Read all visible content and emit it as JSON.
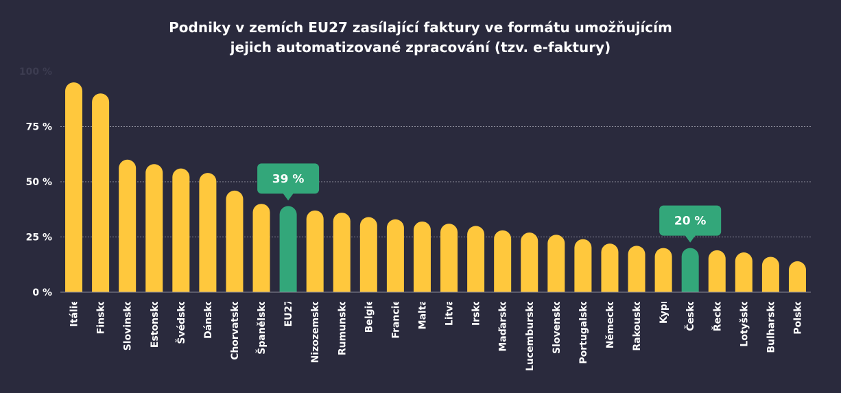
{
  "chart_data": {
    "type": "bar",
    "title_line1": "Podniky v zemích EU27 zasílající faktury ve formátu umožňujícím",
    "title_line2": "jejich automatizované zpracování (tzv. e-faktury)",
    "xlabel": "",
    "ylabel": "",
    "ylim": [
      0,
      100
    ],
    "yticks": [
      "0 %",
      "25 %",
      "50 %",
      "75 %",
      "100 %"
    ],
    "grid": true,
    "categories": [
      "Itálie",
      "Finsko",
      "Slovinsko",
      "Estonsko",
      "Švédsko",
      "Dánsko",
      "Chorvatsko",
      "Španělsko",
      "EU27",
      "Nizozemsko",
      "Rumunsko",
      "Belgie",
      "Francie",
      "Malta",
      "Litva",
      "Irsko",
      "Maďarsko",
      "Lucembursko",
      "Slovensko",
      "Portugalsko",
      "Německo",
      "Rakousko",
      "Kypr",
      "Česko",
      "Řecko",
      "Lotyšsko",
      "Bulharsko",
      "Polsko"
    ],
    "values": [
      95,
      90,
      60,
      58,
      56,
      54,
      46,
      40,
      39,
      37,
      36,
      34,
      33,
      32,
      31,
      30,
      28,
      27,
      26,
      24,
      22,
      21,
      20,
      20,
      19,
      18,
      16,
      14
    ],
    "highlighted": [
      "EU27",
      "Česko"
    ],
    "callouts": [
      {
        "category": "EU27",
        "label": "39 %"
      },
      {
        "category": "Česko",
        "label": "20 %"
      }
    ],
    "colors": {
      "background": "#2a2a3d",
      "bar": "#ffc83d",
      "highlight": "#33a77a",
      "grid": "#8a8a98",
      "tick_text": "#ffffff",
      "top_tick_text": "#3c3c50"
    }
  }
}
